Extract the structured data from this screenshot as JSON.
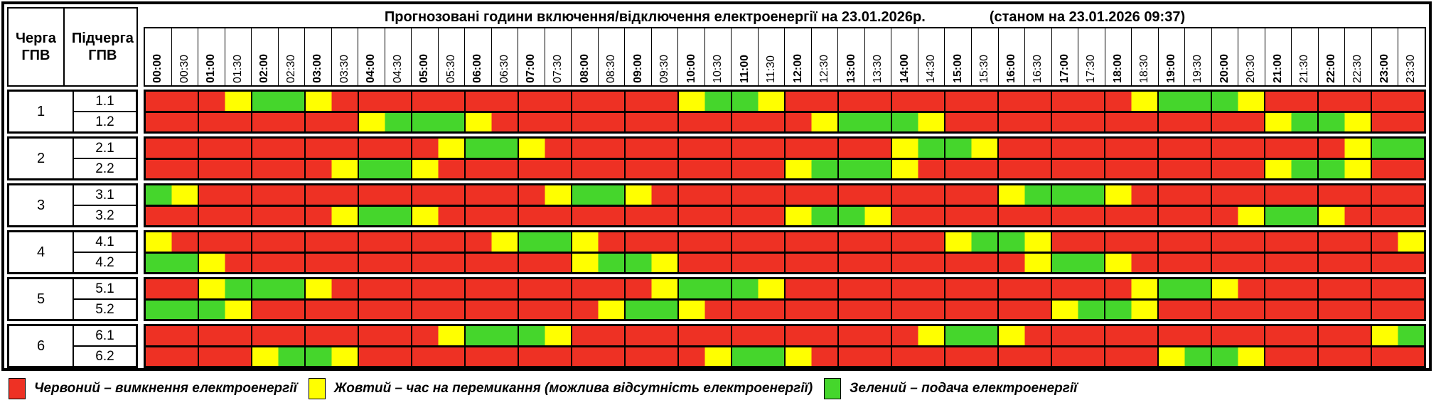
{
  "header": {
    "col_queue": "Черга ГПВ",
    "col_subqueue": "Підчерга ГПВ",
    "title": "Прогнозовані години включення/відключення електроенергії на 23.01.2026р.",
    "subtitle": "(станом на 23.01.2026 09:37)"
  },
  "colors": {
    "R": "#EE3124",
    "Y": "#FFFF00",
    "G": "#45D62C"
  },
  "legend": [
    {
      "key": "R",
      "label": "Червоний – вимкнення електроенергії"
    },
    {
      "key": "Y",
      "label": "Жовтий – час на перемикання (можлива відсутність електроенергії)"
    },
    {
      "key": "G",
      "label": "Зелений – подача електроенергії"
    }
  ],
  "chart_data": {
    "type": "heatmap",
    "title": "Прогнозовані години включення/відключення електроенергії на 23.01.2026р. (станом на 23.01.2026 09:37)",
    "x": [
      "00:00",
      "00:30",
      "01:00",
      "01:30",
      "02:00",
      "02:30",
      "03:00",
      "03:30",
      "04:00",
      "04:30",
      "05:00",
      "05:30",
      "06:00",
      "06:30",
      "07:00",
      "07:30",
      "08:00",
      "08:30",
      "09:00",
      "09:30",
      "10:00",
      "10:30",
      "11:00",
      "11:30",
      "12:00",
      "12:30",
      "13:00",
      "13:30",
      "14:00",
      "14:30",
      "15:00",
      "15:30",
      "16:00",
      "16:30",
      "17:00",
      "17:30",
      "18:00",
      "18:30",
      "19:00",
      "19:30",
      "20:00",
      "20:30",
      "21:00",
      "21:30",
      "22:00",
      "22:30",
      "23:00",
      "23:30"
    ],
    "value_legend": {
      "R": "вимкнення електроенергії",
      "Y": "час на перемикання (можлива відсутність електроенергії)",
      "G": "подача електроенергії"
    },
    "rows": [
      {
        "queue": "1",
        "sub": "1.1",
        "slots": "RRRYGGYRRRRRRRRRRRRRYGGYRRRRRRRRRRRRRYGGGYRRRRRR"
      },
      {
        "queue": "1",
        "sub": "1.2",
        "slots": "RRRRRRRRYGGGYRRRRRRRRRRRRYGGGYRRRRRRRRRRRRYGGYRR"
      },
      {
        "queue": "2",
        "sub": "2.1",
        "slots": "RRRRRRRRRRRYGGYRRRRRRRRRRRRRYGGYRRRRRRRRRRRRRYGG"
      },
      {
        "queue": "2",
        "sub": "2.2",
        "slots": "RRRRRRRYGGYRRRRRRRRRRRRRYGGGYRRRRRRRRRRRRRYGGYRR"
      },
      {
        "queue": "3",
        "sub": "3.1",
        "slots": "GYRRRRRRRRRRRRRYGGYRRRRRRRRRRRRRYGGGYRRRRRRRRRRR"
      },
      {
        "queue": "3",
        "sub": "3.2",
        "slots": "RRRRRRRYGGYRRRRRRRRRRRRRYGGYRRRRRRRRRRRRRYGGYRRR"
      },
      {
        "queue": "4",
        "sub": "4.1",
        "slots": "YRRRRRRRRRRRRYGGYRRRRRRRRRRRRRYGGYRRRRRRRRRRRRRY"
      },
      {
        "queue": "4",
        "sub": "4.2",
        "slots": "GGYRRRRRRRRRRRRRYGGYRRRRRRRRRRRRRYGGYRRRRRRRRRRR"
      },
      {
        "queue": "5",
        "sub": "5.1",
        "slots": "RRYGGGYRRRRRRRRRRRRYGGGYRRRRRRRRRRRRRYGGYRRRRRRR"
      },
      {
        "queue": "5",
        "sub": "5.2",
        "slots": "GGGYRRRRRRRRRRRRRYGGYRRRRRRRRRRRRRYGGYRRRRRRRRRR"
      },
      {
        "queue": "6",
        "sub": "6.1",
        "slots": "RRRRRRRRRRRYGGGYRRRRRRRRRRRRRYGGYRRRRRRRRRRRRRYG"
      },
      {
        "queue": "6",
        "sub": "6.2",
        "slots": "RRRRYGGYRRRRRRRRRRRRRYGGYRRRRRRRRRRRRRYGGYRRRRRR"
      }
    ]
  }
}
